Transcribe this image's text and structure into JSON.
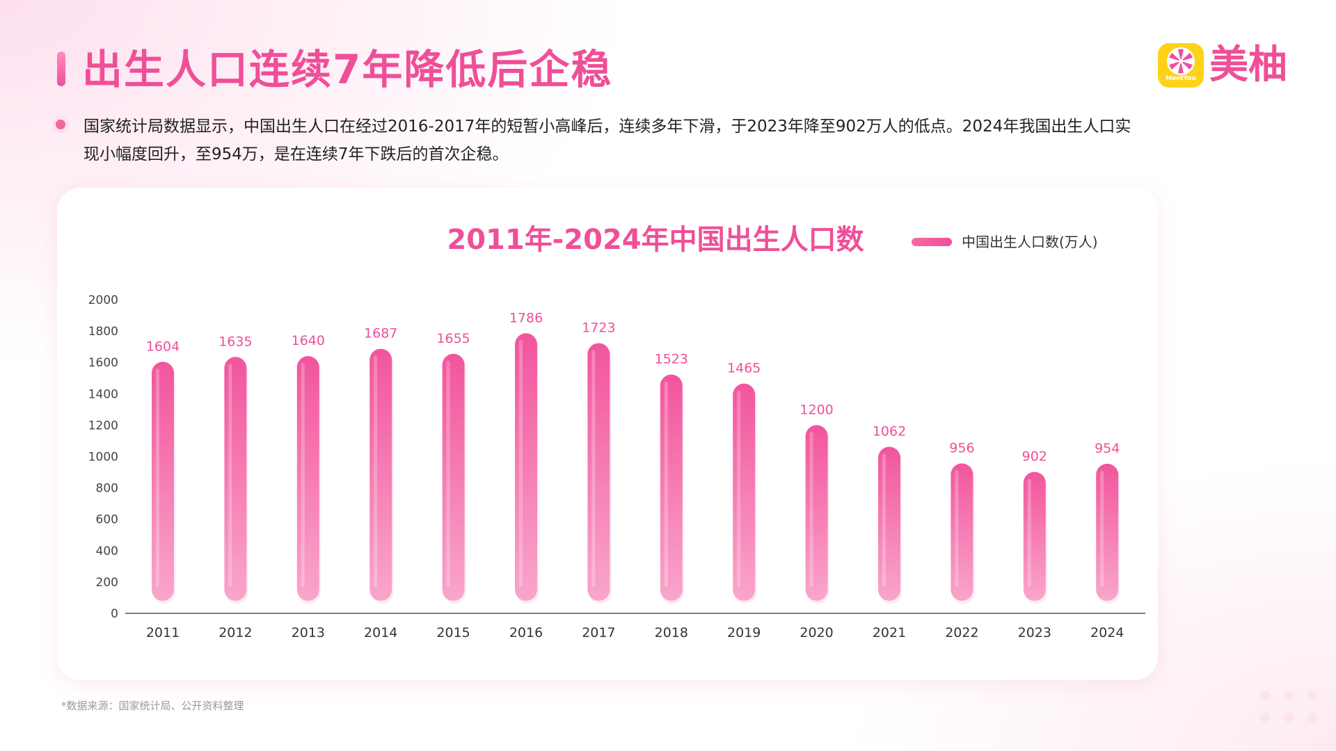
{
  "page": {
    "title": "出生人口连续7年降低后企稳",
    "description": "国家统计局数据显示，中国出生人口在经过2016-2017年的短暂小高峰后，连续多年下滑，于2023年降至902万人的低点。2024年我国出生人口实现小幅度回升，至954万，是在连续7年下跌后的首次企稳。",
    "source_note": "*数据来源：国家统计局、公开资料整理"
  },
  "logo": {
    "text": "美柚",
    "badge_text": "MeetYou"
  },
  "colors": {
    "accent": "#ef4f98",
    "bar_top": "#f2559d",
    "bar_bottom": "#f9a6cb",
    "logo_badge": "#ffd21a"
  },
  "chart_data": {
    "type": "bar",
    "title": "2011年-2024年中国出生人口数",
    "xlabel": "",
    "ylabel": "",
    "categories": [
      "2011",
      "2012",
      "2013",
      "2014",
      "2015",
      "2016",
      "2017",
      "2018",
      "2019",
      "2020",
      "2021",
      "2022",
      "2023",
      "2024"
    ],
    "series": [
      {
        "name": "中国出生人口数(万人)",
        "values": [
          1604,
          1635,
          1640,
          1687,
          1655,
          1786,
          1723,
          1523,
          1465,
          1200,
          1062,
          956,
          902,
          954
        ]
      }
    ],
    "ylim": [
      0,
      2000
    ],
    "yticks": [
      0,
      200,
      400,
      600,
      800,
      1000,
      1200,
      1400,
      1600,
      1800,
      2000
    ],
    "grid": false,
    "legend": "top-right",
    "data_labels": true
  }
}
